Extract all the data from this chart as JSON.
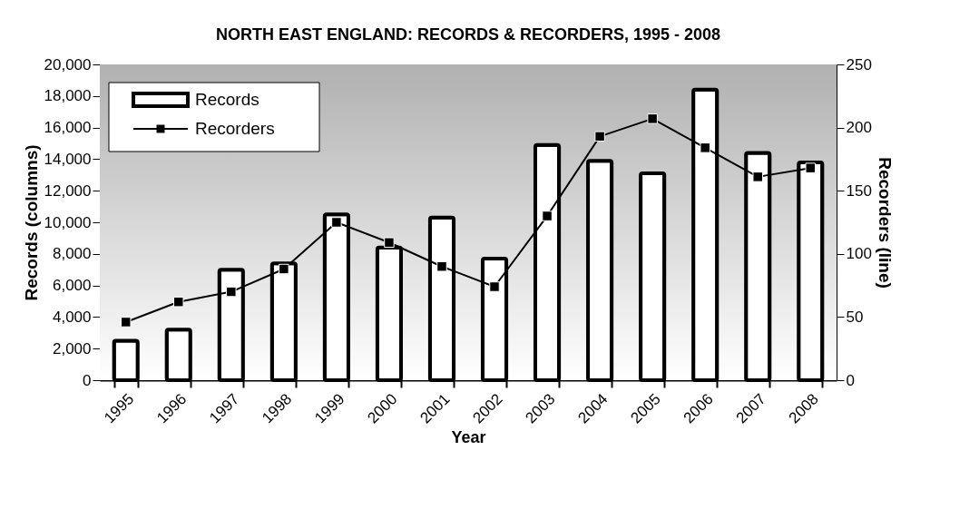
{
  "chart_data": {
    "type": "bar",
    "title": "NORTH EAST ENGLAND:  RECORDS & RECORDERS, 1995 - 2008",
    "xlabel": "Year",
    "ylabel": "Records (columns)",
    "y2label": "Recorders (line)",
    "categories": [
      "1995",
      "1996",
      "1997",
      "1998",
      "1999",
      "2000",
      "2001",
      "2002",
      "2003",
      "2004",
      "2005",
      "2006",
      "2007",
      "2008"
    ],
    "series": [
      {
        "name": "Records",
        "color": "#ffffff",
        "values": [
          2500,
          3200,
          7000,
          7400,
          10500,
          8400,
          10300,
          7700,
          14900,
          13900,
          13100,
          18400,
          14400,
          13800
        ]
      },
      {
        "name": "Recorders",
        "type": "line",
        "axis": "y2",
        "color": "#000000",
        "marker": "square",
        "values": [
          46,
          62,
          70,
          88,
          125,
          109,
          90,
          74,
          130,
          193,
          207,
          184,
          161,
          168
        ]
      }
    ],
    "ylim": [
      0,
      20000
    ],
    "yticks": [
      0,
      {
        "value": 2000,
        "label": "2,000"
      },
      {
        "value": 4000,
        "label": "4,000"
      },
      {
        "value": 6000,
        "label": "6,000"
      },
      {
        "value": 8000,
        "label": "8,000"
      },
      {
        "value": 10000,
        "label": "10,000"
      },
      {
        "value": 12000,
        "label": "12,000"
      },
      {
        "value": 14000,
        "label": "14,000"
      },
      {
        "value": 16000,
        "label": "16,000"
      },
      {
        "value": 18000,
        "label": "18,000"
      },
      {
        "value": 20000,
        "label": "20,000"
      }
    ],
    "y2lim": [
      0,
      250
    ],
    "y2ticks": [
      0,
      50,
      100,
      150,
      200,
      250
    ],
    "legend": "top left"
  }
}
